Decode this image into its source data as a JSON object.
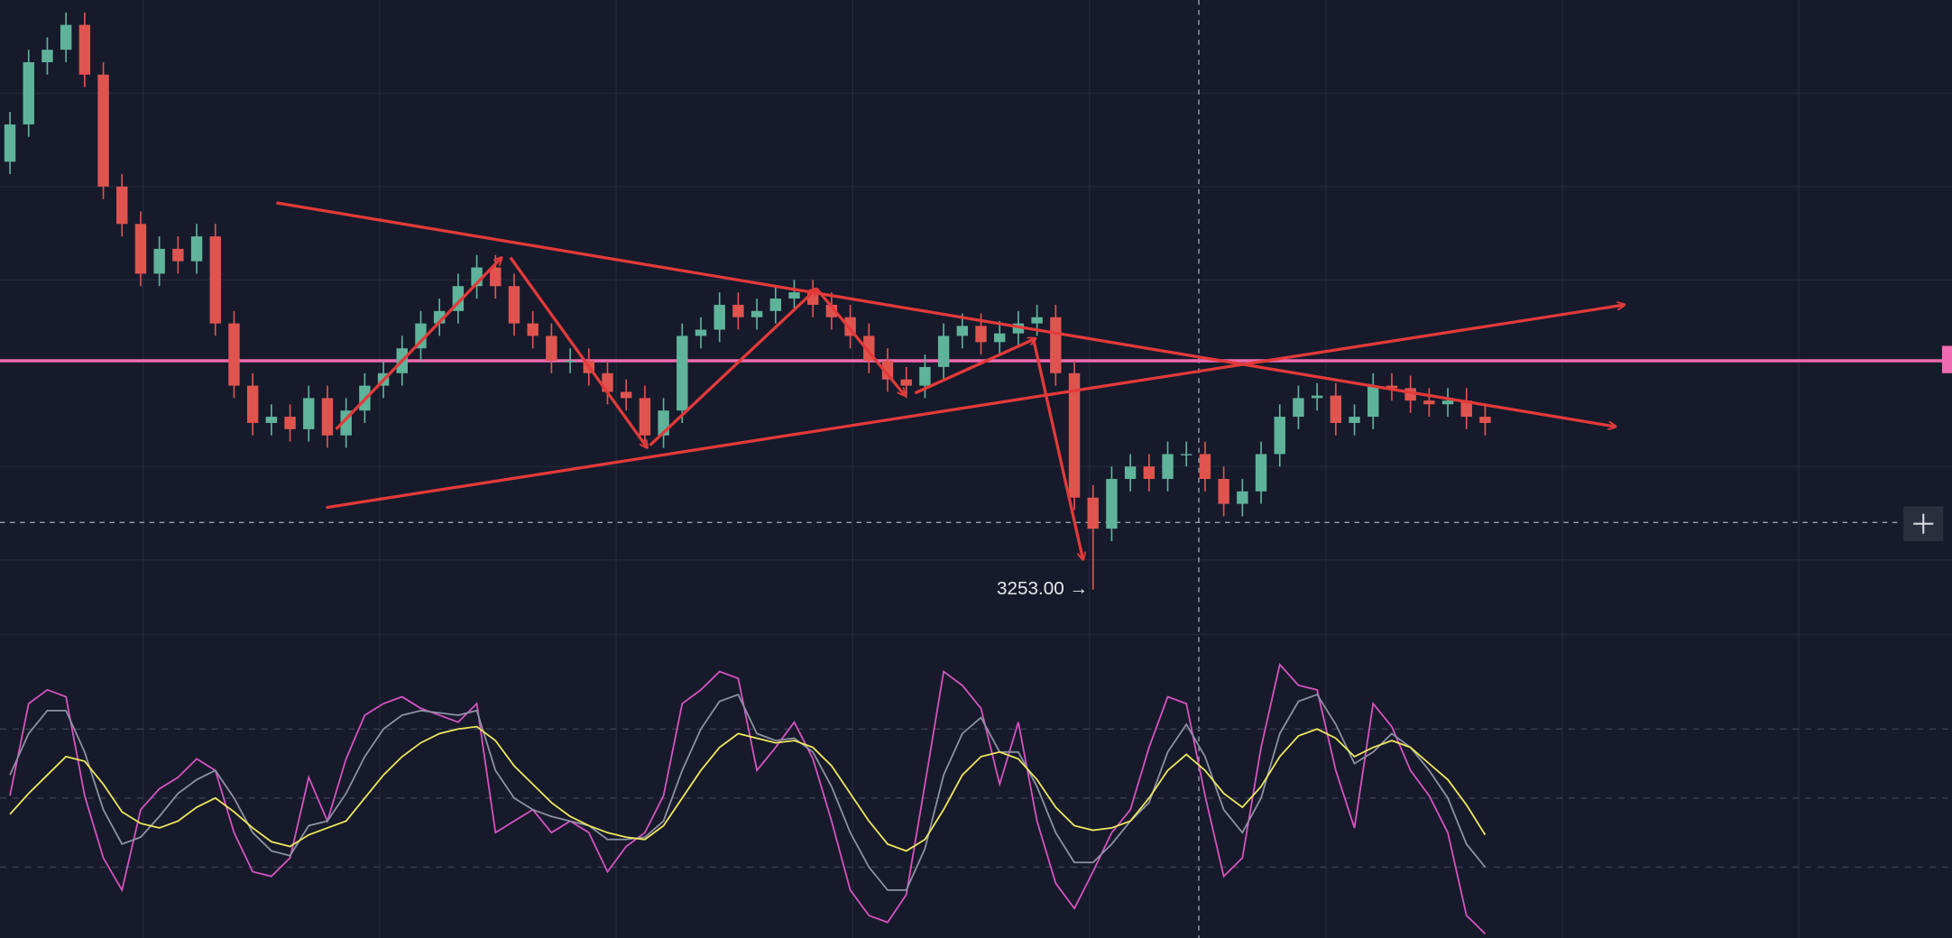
{
  "chart_data": [
    {
      "type": "candlestick",
      "open": [
        3425,
        3440,
        3465,
        3470,
        3480,
        3460,
        3415,
        3400,
        3380,
        3390,
        3385,
        3395,
        3360,
        3335,
        3320,
        3322.5,
        3317.5,
        3330,
        3315,
        3325,
        3335,
        3340,
        3350,
        3360,
        3365,
        3375,
        3382.5,
        3375,
        3360,
        3355,
        3345,
        3345,
        3340,
        3332.5,
        3330,
        3315,
        3325,
        3355,
        3357.5,
        3367.5,
        3362.5,
        3365,
        3370,
        3372.5,
        3367.5,
        3362.5,
        3355,
        3345,
        3337.5,
        3335,
        3342.5,
        3355,
        3359,
        3352.5,
        3356,
        3360,
        3362.5,
        3340,
        3290,
        3277.5,
        3297.5,
        3302.5,
        3297.5,
        3307.5,
        3307.5,
        3297.5,
        3287.5,
        3292.5,
        3307.5,
        3322.5,
        3330,
        3331,
        3320,
        3322.5,
        3335,
        3334,
        3329,
        3327.5,
        3329,
        3322.5
      ],
      "high": [
        3445,
        3470,
        3475,
        3485,
        3485,
        3465,
        3420,
        3405,
        3395,
        3395,
        3400,
        3400,
        3365,
        3340,
        3327.5,
        3327.5,
        3335,
        3335,
        3330,
        3340,
        3345,
        3355,
        3365,
        3370,
        3380,
        3387.5,
        3387.5,
        3380,
        3365,
        3360,
        3350,
        3350,
        3345,
        3337.5,
        3335,
        3330,
        3360,
        3362.5,
        3372.5,
        3372.5,
        3370,
        3375,
        3377.5,
        3377.5,
        3372.5,
        3367.5,
        3360,
        3350,
        3342.5,
        3347.5,
        3360,
        3364,
        3364,
        3361,
        3365,
        3367.5,
        3367.5,
        3345,
        3295,
        3302.5,
        3307.5,
        3307.5,
        3312.5,
        3312.5,
        3312.5,
        3302.5,
        3297.5,
        3312.5,
        3327.5,
        3335,
        3336,
        3336,
        3327.5,
        3340,
        3340,
        3339,
        3334,
        3334,
        3334,
        3327.5
      ],
      "low": [
        3420,
        3435,
        3460,
        3465,
        3455,
        3410,
        3395,
        3375,
        3375,
        3380,
        3380,
        3355,
        3330,
        3315,
        3315,
        3312.5,
        3312.5,
        3310,
        3310,
        3320,
        3330,
        3335,
        3345,
        3355,
        3360,
        3370,
        3370,
        3355,
        3350,
        3340,
        3340,
        3335,
        3327.5,
        3325,
        3310,
        3310,
        3320,
        3350,
        3352.5,
        3357.5,
        3357.5,
        3360,
        3365,
        3362.5,
        3357.5,
        3350,
        3340,
        3332.5,
        3330,
        3330,
        3337.5,
        3350,
        3347.5,
        3347.5,
        3351,
        3355,
        3335,
        3285,
        3253,
        3272.5,
        3292.5,
        3292.5,
        3292.5,
        3302.5,
        3292.5,
        3282.5,
        3282.5,
        3287.5,
        3302.5,
        3317.5,
        3325,
        3315,
        3315,
        3317.5,
        3329,
        3324,
        3322.5,
        3322.5,
        3317.5,
        3315
      ],
      "close": [
        3440,
        3465,
        3470,
        3480,
        3460,
        3415,
        3400,
        3380,
        3390,
        3385,
        3395,
        3360,
        3335,
        3320,
        3322.5,
        3317.5,
        3330,
        3315,
        3325,
        3335,
        3340,
        3350,
        3360,
        3365,
        3375,
        3382.5,
        3375,
        3360,
        3355,
        3345,
        3345,
        3340,
        3332.5,
        3330,
        3315,
        3325,
        3355,
        3357.5,
        3367.5,
        3362.5,
        3365,
        3370,
        3372.5,
        3367.5,
        3362.5,
        3355,
        3345,
        3337.5,
        3335,
        3342.5,
        3355,
        3359,
        3352.5,
        3356,
        3360,
        3362.5,
        3340,
        3290,
        3277.5,
        3297.5,
        3302.5,
        3297.5,
        3307.5,
        3307.5,
        3297.5,
        3287.5,
        3292.5,
        3307.5,
        3322.5,
        3330,
        3331,
        3320,
        3322.5,
        3335,
        3334,
        3329,
        3327.5,
        3329,
        3322.5,
        3320
      ],
      "up_color": "#5fb39a",
      "down_color": "#e0544f",
      "ylim": [
        3240,
        3490
      ],
      "price_line": {
        "value": 3345,
        "color": "#f06bb0"
      },
      "crosshair": 3280,
      "annotation": {
        "value": 3253,
        "label": "3253.00 →",
        "index": 58
      }
    },
    {
      "type": "line",
      "ylim": [
        -10,
        110
      ],
      "yticks": [
        20,
        50,
        80
      ],
      "series": [
        {
          "color": "#d653c0",
          "values": [
            51,
            91,
            97,
            94,
            51,
            24,
            10,
            45,
            54,
            59,
            67,
            62,
            35,
            18,
            16,
            24,
            59,
            40,
            67,
            86,
            91,
            94,
            89,
            86,
            83,
            91,
            35,
            40,
            45,
            35,
            40,
            35,
            18,
            29,
            35,
            51,
            91,
            97,
            105,
            102,
            62,
            72,
            83,
            67,
            40,
            10,
            -1,
            -4,
            8,
            56,
            105,
            99,
            89,
            56,
            83,
            40,
            13,
            2,
            18,
            35,
            45,
            72,
            94,
            91,
            51,
            16,
            24,
            72,
            108,
            99,
            97,
            62,
            37,
            91,
            81,
            62,
            51,
            35,
            -1,
            -9
          ]
        },
        {
          "color": "#8d92a3",
          "values": [
            60,
            78,
            88,
            88,
            70,
            45,
            30,
            33,
            42,
            52,
            58,
            62,
            50,
            35,
            27,
            25,
            38,
            40,
            52,
            68,
            80,
            86,
            88,
            87,
            86,
            88,
            62,
            50,
            45,
            42,
            40,
            38,
            32,
            32,
            33,
            40,
            62,
            80,
            92,
            95,
            78,
            75,
            76,
            70,
            55,
            35,
            20,
            10,
            10,
            28,
            60,
            78,
            85,
            70,
            70,
            55,
            35,
            22,
            22,
            30,
            40,
            48,
            70,
            82,
            68,
            45,
            35,
            50,
            78,
            92,
            95,
            82,
            65,
            70,
            78,
            72,
            62,
            50,
            30,
            20
          ]
        },
        {
          "color": "#eee85c",
          "values": [
            43,
            52,
            60,
            68,
            66,
            56,
            44,
            39,
            37,
            40,
            46,
            50,
            44,
            37,
            31,
            29,
            34,
            37,
            40,
            50,
            60,
            68,
            74,
            78,
            80,
            81,
            75,
            64,
            56,
            48,
            42,
            38,
            35,
            33,
            32,
            38,
            50,
            62,
            72,
            78,
            76,
            74,
            75,
            72,
            64,
            52,
            40,
            30,
            27,
            32,
            45,
            60,
            68,
            70,
            67,
            58,
            46,
            38,
            36,
            37,
            40,
            50,
            62,
            69,
            62,
            52,
            46,
            55,
            68,
            77,
            80,
            76,
            68,
            72,
            75,
            72,
            65,
            58,
            47,
            34
          ]
        }
      ]
    }
  ]
}
